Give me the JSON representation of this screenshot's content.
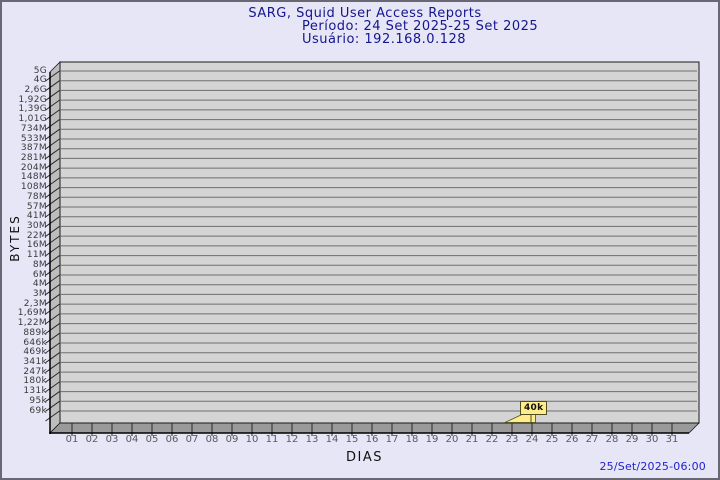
{
  "chart_data": {
    "type": "area",
    "style": "3d",
    "title": "SARG, Squid User Access Reports",
    "period": "Período: 24 Set 2025-25 Set 2025",
    "user": "Usuário: 192.168.0.128",
    "xlabel": "DIAS",
    "ylabel": "BYTES",
    "grid": true,
    "legend_position": "none",
    "x_ticks": [
      "01",
      "02",
      "03",
      "04",
      "05",
      "06",
      "07",
      "08",
      "09",
      "10",
      "11",
      "12",
      "13",
      "14",
      "15",
      "16",
      "17",
      "18",
      "19",
      "20",
      "21",
      "22",
      "23",
      "24",
      "25",
      "26",
      "27",
      "28",
      "29",
      "30",
      "31"
    ],
    "y_ticks": [
      "5G",
      "4G",
      "2,6G",
      "1,92G",
      "1,39G",
      "1,01G",
      "734M",
      "533M",
      "387M",
      "281M",
      "204M",
      "148M",
      "108M",
      "78M",
      "57M",
      "41M",
      "30M",
      "22M",
      "16M",
      "11M",
      "8M",
      "6M",
      "4M",
      "3M",
      "2,3M",
      "1,69M",
      "1,22M",
      "889k",
      "646k",
      "469k",
      "341k",
      "247k",
      "180k",
      "131k",
      "95k",
      "69k"
    ],
    "ylim_labels": [
      "69k",
      "5G"
    ],
    "series": [
      {
        "name": "bytes",
        "points": [
          {
            "day": "24",
            "value": 40000,
            "label": "40k"
          }
        ]
      }
    ],
    "annotation": {
      "day": "24",
      "label": "40k"
    }
  },
  "footer": {
    "timestamp": "25/Set/2025-06:00"
  },
  "colors": {
    "background": "#e6e6f7",
    "border": "#686875",
    "title_text": "#15158e",
    "footer_text": "#2222cc",
    "plot_fill": "#d4d4d4",
    "plot_wall": "#bdbdbd",
    "plot_floor": "#9a9a9a",
    "gridline": "#6e6e6e",
    "axis_line": "#000000",
    "tick_text": "#3a3a3a",
    "marker_fill": "#ffec8c",
    "marker_border": "#4d4d1f"
  }
}
